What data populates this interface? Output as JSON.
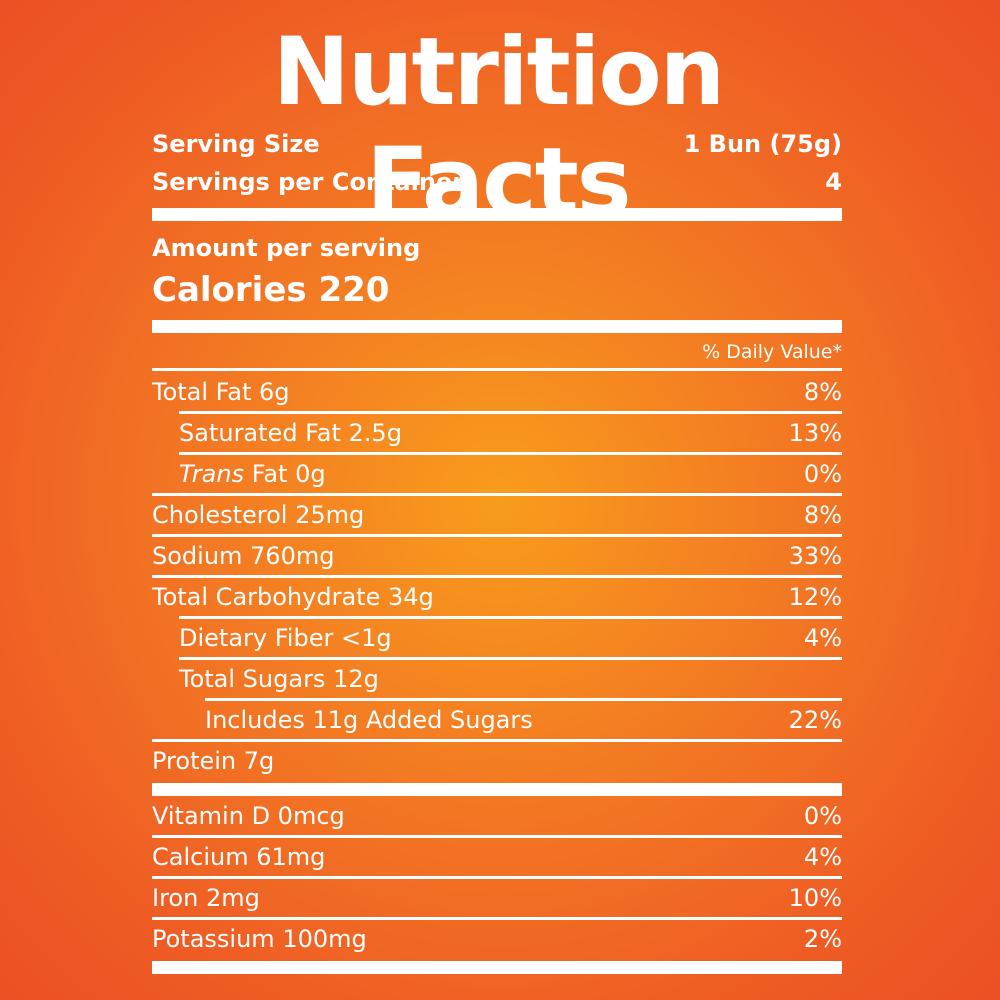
{
  "title": "Nutrition Facts",
  "serving": {
    "size_label": "Serving Size",
    "size_value": "1 Bun (75g)",
    "per_container_label": "Servings per Container",
    "per_container_value": "4"
  },
  "amount_per_serving": "Amount per serving",
  "calories": "Calories 220",
  "daily_value_header": "% Daily Value*",
  "nutrients": [
    {
      "label": "Total Fat 6g",
      "dv": "8%"
    },
    {
      "label": "Saturated Fat 2.5g",
      "dv": "13%"
    },
    {
      "label_italic": "Trans",
      "label_rest": " Fat 0g",
      "dv": "0%"
    },
    {
      "label": "Cholesterol 25mg",
      "dv": "8%"
    },
    {
      "label": "Sodium 760mg",
      "dv": "33%"
    },
    {
      "label": "Total Carbohydrate 34g",
      "dv": "12%"
    },
    {
      "label": "Dietary Fiber <1g",
      "dv": "4%"
    },
    {
      "label": "Total Sugars 12g",
      "dv": ""
    },
    {
      "label": "Includes 11g Added Sugars",
      "dv": "22%"
    },
    {
      "label": "Protein 7g",
      "dv": ""
    }
  ],
  "vitamins": [
    {
      "label": "Vitamin D 0mcg",
      "dv": "0%"
    },
    {
      "label": "Calcium 61mg",
      "dv": "4%"
    },
    {
      "label": "Iron 2mg",
      "dv": "10%"
    },
    {
      "label": "Potassium 100mg",
      "dv": "2%"
    }
  ],
  "colors": {
    "background_center": "#f89c1c",
    "background_edge": "#ec5024",
    "text": "#ffffff"
  }
}
